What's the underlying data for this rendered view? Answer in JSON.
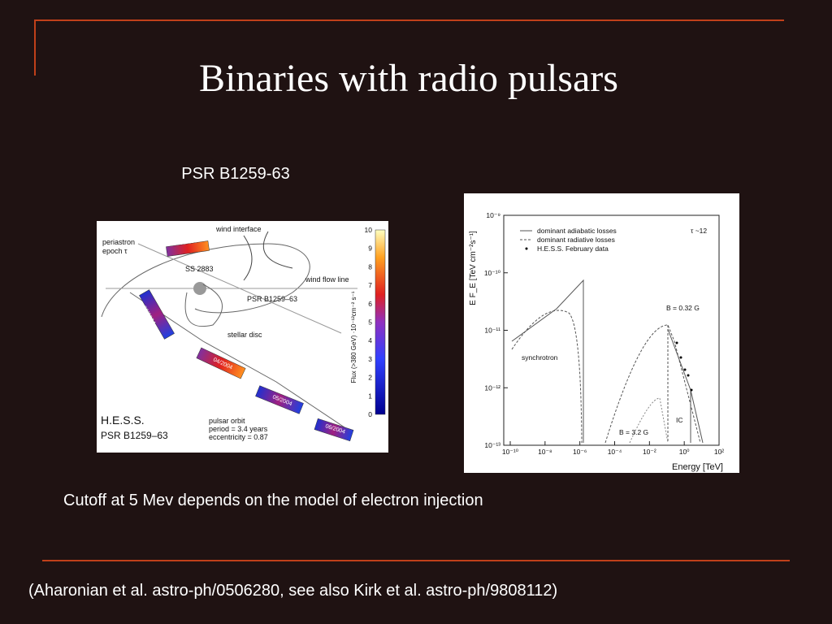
{
  "title": "Binaries with radio pulsars",
  "subtitle": "PSR B1259-63",
  "caption": "Cutoff at 5 Mev depends on the model of electron injection",
  "reference": "(Aharonian et al. astro-ph/0506280, see also Kirk et al. astro-ph/9808112)",
  "orbit_figure": {
    "periastron": "periastron",
    "epoch": "epoch τ",
    "wind_interface": "wind interface",
    "star": "SS 2883",
    "wind_flow": "wind flow line",
    "pulsar": "PSR B1259–63",
    "stellar_disc": "stellar disc",
    "months": [
      "02/2004",
      "03/2004",
      "04/2004",
      "05/2004",
      "06/2004"
    ],
    "hess": "H.E.S.S.",
    "source": "PSR B1259–63",
    "orbit": "pulsar orbit",
    "period": "period = 3.4 years",
    "eccentricity": "eccentricity = 0.87",
    "colorbar_ticks": [
      0,
      1,
      2,
      3,
      4,
      5,
      6,
      7,
      8,
      9,
      10
    ],
    "colorbar_label": "Flux (>380 GeV) ·10⁻¹²cm⁻² s⁻¹"
  },
  "sed_figure": {
    "yticks": [
      "10⁻⁹",
      "10⁻¹⁰",
      "10⁻¹¹",
      "10⁻¹²",
      "10⁻¹³"
    ],
    "xticks": [
      "10⁻¹⁰",
      "10⁻⁸",
      "10⁻⁶",
      "10⁻⁴",
      "10⁻²",
      "10⁰",
      "10²"
    ],
    "ylabel": "E F_E  [TeV cm⁻²s⁻¹]",
    "xlabel": "Energy [TeV]",
    "legend": [
      "dominant adiabatic losses",
      "dominant radiative losses",
      "H.E.S.S. February data"
    ],
    "tau": "τ ~12",
    "synchrotron": "synchrotron",
    "b_high": "B = 0.32 G",
    "b_low": "B = 3.2 G",
    "ic": "IC"
  }
}
